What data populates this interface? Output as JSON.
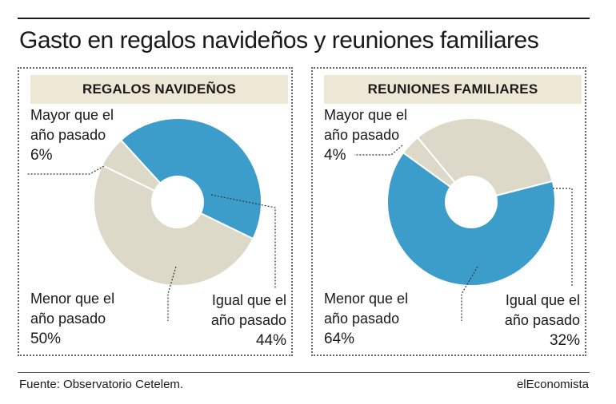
{
  "title": "Gasto en regalos navideños y reuniones familiares",
  "source": "Fuente: Observatorio Cetelem.",
  "brand": "elEconomista",
  "colors": {
    "blue": "#3d9dca",
    "beige": "#dcd9c8",
    "header_bg": "#ede8d6",
    "leader": "#333333"
  },
  "panels": [
    {
      "heading": "REGALOS NAVIDEÑOS",
      "labels": {
        "mayor": {
          "line1": "Mayor que el",
          "line2": "año pasado",
          "pct": "6%"
        },
        "menor": {
          "line1": "Menor que el",
          "line2": "año pasado",
          "pct": "50%"
        },
        "igual": {
          "line1": "Igual que el",
          "line2": "año pasado",
          "pct": "44%"
        }
      }
    },
    {
      "heading": "REUNIONES FAMILIARES",
      "labels": {
        "mayor": {
          "line1": "Mayor que el",
          "line2": "año pasado",
          "pct": "4%"
        },
        "menor": {
          "line1": "Menor que el",
          "line2": "año pasado",
          "pct": "64%"
        },
        "igual": {
          "line1": "Igual que el",
          "line2": "año pasado",
          "pct": "32%"
        }
      }
    }
  ],
  "chart_data": [
    {
      "type": "pie",
      "title": "REGALOS NAVIDEÑOS",
      "categories": [
        "Mayor que el año pasado",
        "Igual que el año pasado",
        "Menor que el año pasado"
      ],
      "values": [
        6,
        44,
        50
      ],
      "colors": [
        "#dcd9c8",
        "#3d9dca",
        "#dcd9c8"
      ],
      "donut": true
    },
    {
      "type": "pie",
      "title": "REUNIONES FAMILIARES",
      "categories": [
        "Mayor que el año pasado",
        "Igual que el año pasado",
        "Menor que el año pasado"
      ],
      "values": [
        4,
        32,
        64
      ],
      "colors": [
        "#dcd9c8",
        "#dcd9c8",
        "#3d9dca"
      ],
      "donut": true
    }
  ]
}
